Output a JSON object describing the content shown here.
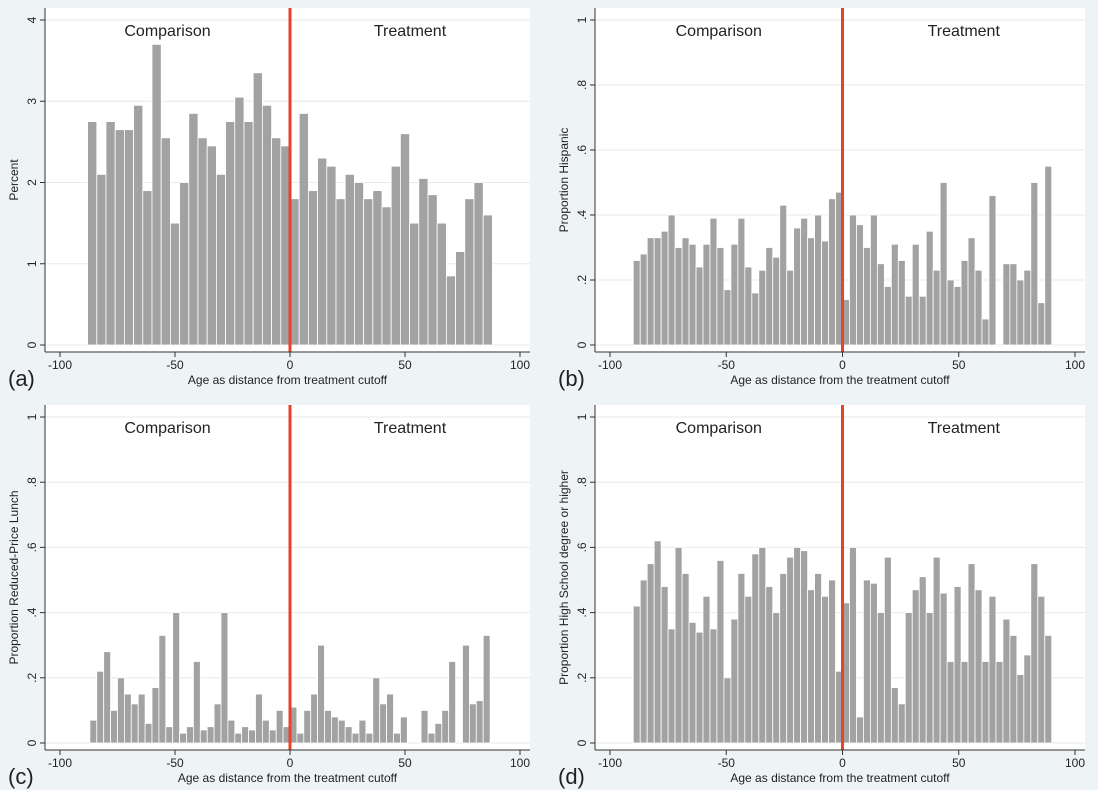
{
  "chart_data": [
    {
      "type": "histogram",
      "panel_label": "(a)",
      "xlabel": "Age as distance from treatment cutoff",
      "ylabel": "Percent",
      "annotations": [
        "Comparison",
        "Treatment"
      ],
      "color": "#a2a2a2",
      "reference_line": {
        "x": 0,
        "color": "#e8432a"
      },
      "grid": true,
      "xlim": [
        -100,
        100
      ],
      "ylim": [
        0,
        4
      ],
      "xticks": [
        -100,
        -50,
        0,
        50,
        100
      ],
      "yticks": [
        0,
        1,
        2,
        3,
        4
      ],
      "bins": [
        -88,
        -84,
        -80,
        -76,
        -72,
        -68,
        -64,
        -60,
        -56,
        -52,
        -48,
        -44,
        -40,
        -36,
        -32,
        -28,
        -24,
        -20,
        -16,
        -12,
        -8,
        -4,
        0,
        4,
        8,
        12,
        16,
        20,
        24,
        28,
        32,
        36,
        40,
        44,
        48,
        52,
        56,
        60,
        64,
        68,
        72,
        76,
        80,
        84,
        88
      ],
      "values": [
        2.75,
        2.1,
        2.75,
        2.65,
        2.65,
        2.95,
        1.9,
        3.7,
        2.55,
        1.5,
        2.0,
        2.85,
        2.55,
        2.45,
        2.1,
        2.75,
        3.05,
        2.75,
        3.35,
        2.95,
        2.55,
        2.45,
        1.8,
        2.85,
        1.9,
        2.3,
        2.2,
        1.8,
        2.1,
        2.0,
        1.8,
        1.9,
        1.7,
        2.2,
        2.6,
        1.5,
        2.05,
        1.85,
        1.5,
        0.85,
        1.15,
        1.8,
        2.0,
        1.6
      ]
    },
    {
      "type": "histogram",
      "panel_label": "(b)",
      "xlabel": "Age as distance from the treatment cutoff",
      "ylabel": "Proportion Hispanic",
      "annotations": [
        "Comparison",
        "Treatment"
      ],
      "color": "#a2a2a2",
      "reference_line": {
        "x": 0,
        "color": "#e8432a"
      },
      "grid": true,
      "xlim": [
        -100,
        100
      ],
      "ylim": [
        0,
        1
      ],
      "xticks": [
        -100,
        -50,
        0,
        50,
        100
      ],
      "yticks": [
        0,
        {
          "value": 0.2,
          "label": ".2"
        },
        {
          "value": 0.4,
          "label": ".4"
        },
        {
          "value": 0.6,
          "label": ".6"
        },
        {
          "value": 0.8,
          "label": ".8"
        },
        1
      ],
      "bins": [
        -90,
        -87,
        -84,
        -81,
        -78,
        -75,
        -72,
        -69,
        -66,
        -63,
        -60,
        -57,
        -54,
        -51,
        -48,
        -45,
        -42,
        -39,
        -36,
        -33,
        -30,
        -27,
        -24,
        -21,
        -18,
        -15,
        -12,
        -9,
        -6,
        -3,
        0,
        3,
        6,
        9,
        12,
        15,
        18,
        21,
        24,
        27,
        30,
        33,
        36,
        39,
        42,
        45,
        48,
        51,
        54,
        57,
        60,
        63,
        66,
        69,
        72,
        75,
        78,
        81,
        84,
        87,
        90
      ],
      "values": [
        0.26,
        0.28,
        0.33,
        0.33,
        0.35,
        0.4,
        0.3,
        0.33,
        0.31,
        0.24,
        0.31,
        0.39,
        0.3,
        0.17,
        0.31,
        0.39,
        0.24,
        0.16,
        0.23,
        0.3,
        0.27,
        0.43,
        0.23,
        0.36,
        0.39,
        0.33,
        0.4,
        0.32,
        0.45,
        0.47,
        0.14,
        0.4,
        0.37,
        0.3,
        0.4,
        0.25,
        0.18,
        0.31,
        0.26,
        0.15,
        0.31,
        0.15,
        0.35,
        0.23,
        0.5,
        0.2,
        0.18,
        0.26,
        0.33,
        0.23,
        0.08,
        0.46,
        0,
        0.25,
        0.25,
        0.2,
        0.23,
        0.5,
        0.13,
        0.55
      ]
    },
    {
      "type": "histogram",
      "panel_label": "(c)",
      "xlabel": "Age as distance from the treatment cutoff",
      "ylabel": "Proportion Reduced-Price Lunch",
      "annotations": [
        "Comparison",
        "Treatment"
      ],
      "color": "#a2a2a2",
      "reference_line": {
        "x": 0,
        "color": "#e8432a"
      },
      "grid": true,
      "xlim": [
        -100,
        100
      ],
      "ylim": [
        0,
        1
      ],
      "xticks": [
        -100,
        -50,
        0,
        50,
        100
      ],
      "yticks": [
        0,
        {
          "value": 0.2,
          "label": ".2"
        },
        {
          "value": 0.4,
          "label": ".4"
        },
        {
          "value": 0.6,
          "label": ".6"
        },
        {
          "value": 0.8,
          "label": ".8"
        },
        1
      ],
      "bins": [
        -90,
        -87,
        -84,
        -81,
        -78,
        -75,
        -72,
        -69,
        -66,
        -63,
        -60,
        -57,
        -54,
        -51,
        -48,
        -45,
        -42,
        -39,
        -36,
        -33,
        -30,
        -27,
        -24,
        -21,
        -18,
        -15,
        -12,
        -9,
        -6,
        -3,
        0,
        3,
        6,
        9,
        12,
        15,
        18,
        21,
        24,
        27,
        30,
        33,
        36,
        39,
        42,
        45,
        48,
        51,
        54,
        57,
        60,
        63,
        66,
        69,
        72,
        75,
        78,
        81,
        84,
        87,
        90
      ],
      "values": [
        0,
        0.07,
        0.22,
        0.28,
        0.1,
        0.2,
        0.15,
        0.12,
        0.15,
        0.06,
        0.17,
        0.33,
        0.05,
        0.4,
        0.03,
        0.05,
        0.25,
        0.04,
        0.05,
        0.12,
        0.4,
        0.07,
        0.03,
        0.05,
        0.04,
        0.15,
        0.07,
        0.04,
        0.1,
        0.05,
        0.11,
        0.03,
        0.1,
        0.15,
        0.3,
        0.1,
        0.08,
        0.07,
        0.05,
        0.03,
        0.07,
        0.03,
        0.2,
        0.12,
        0.15,
        0.03,
        0.08,
        0,
        0,
        0.1,
        0.03,
        0.06,
        0.1,
        0.25,
        0,
        0.3,
        0.12,
        0.13,
        0.33,
        0
      ]
    },
    {
      "type": "histogram",
      "panel_label": "(d)",
      "xlabel": "Age as distance from the treatment cutoff",
      "ylabel": "Proportion High School degree or higher",
      "annotations": [
        "Comparison",
        "Treatment"
      ],
      "color": "#a2a2a2",
      "reference_line": {
        "x": 0,
        "color": "#e8432a"
      },
      "grid": true,
      "xlim": [
        -100,
        100
      ],
      "ylim": [
        0,
        1
      ],
      "xticks": [
        -100,
        -50,
        0,
        50,
        100
      ],
      "yticks": [
        0,
        {
          "value": 0.2,
          "label": ".2"
        },
        {
          "value": 0.4,
          "label": ".4"
        },
        {
          "value": 0.6,
          "label": ".6"
        },
        {
          "value": 0.8,
          "label": ".8"
        },
        1
      ],
      "bins": [
        -90,
        -87,
        -84,
        -81,
        -78,
        -75,
        -72,
        -69,
        -66,
        -63,
        -60,
        -57,
        -54,
        -51,
        -48,
        -45,
        -42,
        -39,
        -36,
        -33,
        -30,
        -27,
        -24,
        -21,
        -18,
        -15,
        -12,
        -9,
        -6,
        -3,
        0,
        3,
        6,
        9,
        12,
        15,
        18,
        21,
        24,
        27,
        30,
        33,
        36,
        39,
        42,
        45,
        48,
        51,
        54,
        57,
        60,
        63,
        66,
        69,
        72,
        75,
        78,
        81,
        84,
        87,
        90
      ],
      "values": [
        0.42,
        0.5,
        0.55,
        0.62,
        0.48,
        0.35,
        0.6,
        0.52,
        0.37,
        0.34,
        0.45,
        0.35,
        0.56,
        0.2,
        0.38,
        0.52,
        0.45,
        0.58,
        0.6,
        0.48,
        0.4,
        0.52,
        0.57,
        0.6,
        0.59,
        0.47,
        0.52,
        0.45,
        0.5,
        0.22,
        0.43,
        0.6,
        0.08,
        0.5,
        0.49,
        0.4,
        0.57,
        0.17,
        0.12,
        0.4,
        0.47,
        0.51,
        0.4,
        0.57,
        0.46,
        0.25,
        0.48,
        0.25,
        0.55,
        0.47,
        0.25,
        0.45,
        0.25,
        0.38,
        0.33,
        0.21,
        0.27,
        0.55,
        0.45,
        0.33
      ]
    }
  ]
}
